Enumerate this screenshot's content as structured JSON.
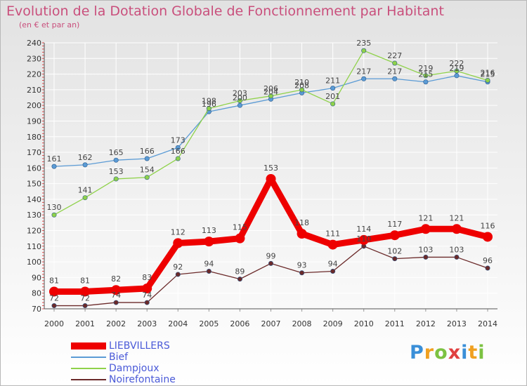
{
  "title": "Evolution de la Dotation Globale de Fonctionnement par Habitant",
  "subtitle": "(en € et par an)",
  "brand": "Proxiti",
  "colors": {
    "title": "#c94f7c",
    "legend_text": "#4a5ad8",
    "grid": "#ffffff",
    "axis": "#555555"
  },
  "chart_data": {
    "type": "line",
    "title": "Evolution de la Dotation Globale de Fonctionnement par Habitant",
    "subtitle": "(en € et par an)",
    "xlabel": "",
    "ylabel": "",
    "x": [
      "2000",
      "2001",
      "2002",
      "2003",
      "2004",
      "2005",
      "2006",
      "2007",
      "2008",
      "2009",
      "2010",
      "2011",
      "2012",
      "2013",
      "2014"
    ],
    "yticks": [
      70,
      80,
      90,
      100,
      110,
      120,
      130,
      140,
      150,
      160,
      170,
      180,
      190,
      200,
      210,
      220,
      230,
      240
    ],
    "ylim": [
      70,
      240
    ],
    "legend_position": "bottom-left",
    "series": [
      {
        "name": "LIEBVILLERS",
        "color": "#ee0000",
        "emphasis": true,
        "values": [
          81,
          81,
          82,
          83,
          112,
          113,
          115,
          153,
          118,
          111,
          114,
          117,
          121,
          121,
          116
        ]
      },
      {
        "name": "Bief",
        "color": "#5b9bd5",
        "emphasis": false,
        "values": [
          161,
          162,
          165,
          166,
          173,
          196,
          200,
          204,
          208,
          211,
          217,
          217,
          215,
          219,
          215
        ]
      },
      {
        "name": "Dampjoux",
        "color": "#8fd24a",
        "emphasis": false,
        "values": [
          130,
          141,
          153,
          154,
          166,
          198,
          203,
          206,
          210,
          201,
          235,
          227,
          219,
          222,
          216
        ]
      },
      {
        "name": "Noirefontaine",
        "color": "#6b2a2a",
        "emphasis": false,
        "values": [
          72,
          72,
          74,
          74,
          92,
          94,
          89,
          99,
          93,
          94,
          110,
          102,
          103,
          103,
          96
        ]
      }
    ]
  }
}
